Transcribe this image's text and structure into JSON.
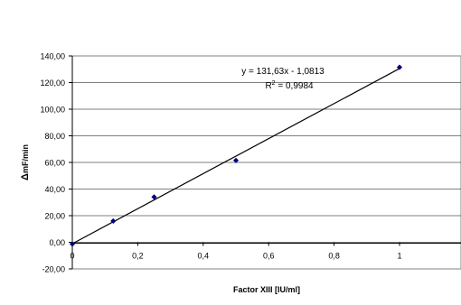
{
  "chart_data": {
    "type": "scatter",
    "title": "",
    "xlabel": "Factor XIII [IU/ml]",
    "ylabel_delta": "Δ",
    "ylabel_rest": "mF/min",
    "xlim": [
      0,
      1.0
    ],
    "ylim": [
      -20,
      140
    ],
    "x_ticks": [
      0,
      0.2,
      0.4,
      0.6,
      0.8,
      1.0
    ],
    "x_tick_labels": [
      "0",
      "0,2",
      "0,4",
      "0,6",
      "0,8",
      "1"
    ],
    "y_ticks": [
      -20,
      0,
      20,
      40,
      60,
      80,
      100,
      120,
      140
    ],
    "y_tick_labels": [
      "-20,00",
      "0,00",
      "20,00",
      "40,00",
      "60,00",
      "80,00",
      "100,00",
      "120,00",
      "140,00"
    ],
    "grid": "horizontal",
    "legend": "none",
    "series": [
      {
        "points": [
          {
            "x": 0,
            "y": -1.3
          },
          {
            "x": 0.125,
            "y": 16.0
          },
          {
            "x": 0.25,
            "y": 34.0
          },
          {
            "x": 0.5,
            "y": 61.5
          },
          {
            "x": 1.0,
            "y": 131.5
          }
        ],
        "color": "#000080"
      }
    ],
    "trendline": {
      "slope": 131.63,
      "intercept": -1.0813,
      "equation_label": "y = 131,63x - 1,0813",
      "r2_prefix": "R",
      "r2_sup": "2",
      "r2_suffix": " = 0,9984",
      "color": "#000000"
    }
  }
}
